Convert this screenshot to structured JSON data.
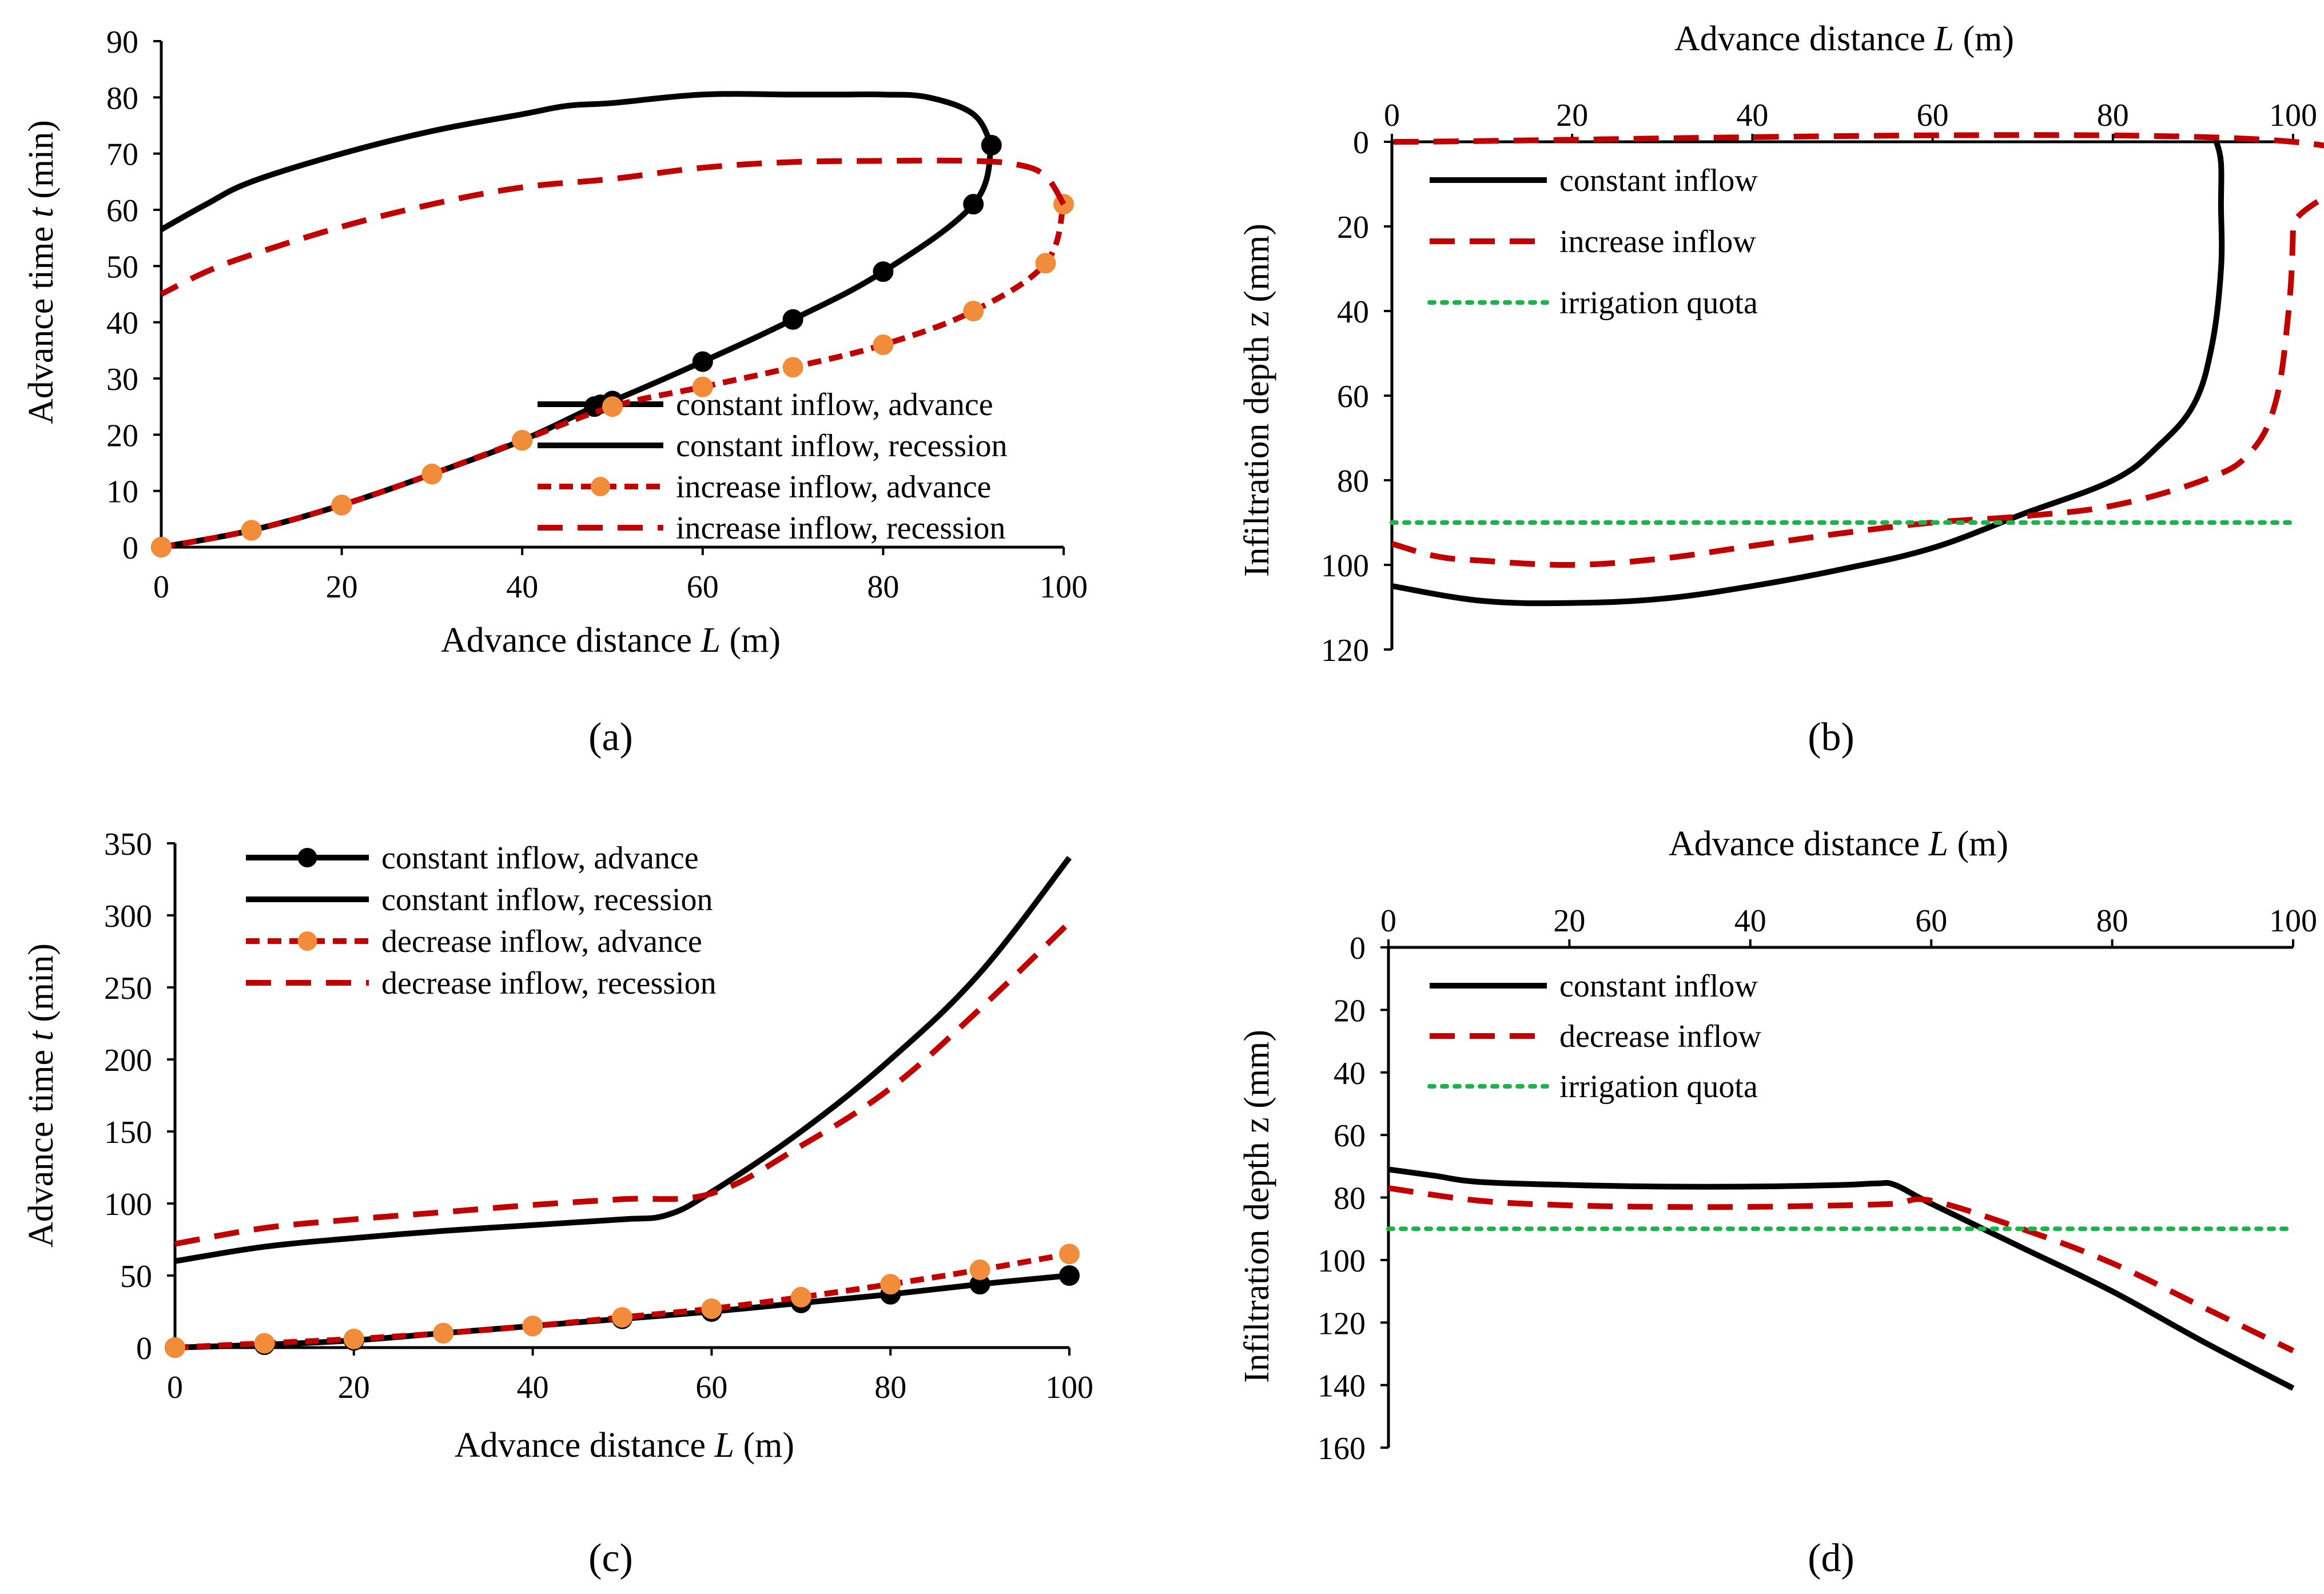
{
  "colors": {
    "constant": "#000000",
    "variable": "#c00000",
    "marker_variable": "#f08c3a",
    "quota": "#1db34a"
  },
  "chart_data": [
    {
      "id": "a",
      "type": "line",
      "panel_label": "(a)",
      "xlabel_pre": "Advance distance ",
      "xlabel_var": "L",
      "xlabel_post": " (m)",
      "ylabel_pre": "Advance time ",
      "ylabel_var": "t",
      "ylabel_post": " (min)",
      "xlim": [
        0,
        100
      ],
      "ylim": [
        0,
        90
      ],
      "xticks": [
        "0",
        "20",
        "40",
        "60",
        "80",
        "100"
      ],
      "yticks": [
        "0",
        "10",
        "20",
        "30",
        "40",
        "50",
        "60",
        "70",
        "80",
        "90"
      ],
      "legend_position": "bottom-right",
      "series": [
        {
          "name": "constant inflow,   advance",
          "style": "constant-advance",
          "x": [
            0,
            10,
            20,
            30,
            40,
            48,
            50,
            60,
            70,
            80,
            90,
            92
          ],
          "y": [
            0,
            3,
            7.5,
            13,
            19,
            25,
            26,
            33,
            40.5,
            49,
            61,
            71.5
          ]
        },
        {
          "name": "constant inflow,   recession",
          "style": "constant-recession",
          "x": [
            92,
            90,
            85,
            80,
            75,
            70,
            60,
            50,
            45,
            40,
            30,
            20,
            10,
            5,
            0
          ],
          "y": [
            71.5,
            77,
            80,
            80.5,
            80.5,
            80.5,
            80.5,
            79,
            78.5,
            77,
            74,
            70,
            65,
            61,
            56.5
          ]
        },
        {
          "name": "increase inflow,   advance",
          "style": "variable-advance",
          "x": [
            0,
            10,
            20,
            30,
            40,
            50,
            60,
            70,
            80,
            90,
            98,
            100
          ],
          "y": [
            0,
            3,
            7.5,
            13,
            19,
            25,
            28.5,
            32,
            36,
            42,
            50.5,
            61
          ]
        },
        {
          "name": "increase inflow,   recession",
          "style": "variable-recession",
          "x": [
            100,
            98,
            95,
            90,
            80,
            70,
            60,
            50,
            40,
            30,
            20,
            10,
            5,
            0
          ],
          "y": [
            61,
            66,
            68,
            68.7,
            68.7,
            68.5,
            67.5,
            65.5,
            64,
            61,
            57,
            52,
            49,
            45
          ]
        }
      ]
    },
    {
      "id": "b",
      "type": "line",
      "panel_label": "(b)",
      "xlabel_pre": "Advance distance ",
      "xlabel_var": "L",
      "xlabel_post": " (m)",
      "ylabel_pre": "Infiltration depth z (mm)",
      "ylabel_var": "",
      "ylabel_post": "",
      "xlim": [
        0,
        100
      ],
      "ylim": [
        0,
        120
      ],
      "y_inverted": true,
      "x_axis_top": true,
      "xticks": [
        "0",
        "20",
        "40",
        "60",
        "80",
        "100"
      ],
      "yticks": [
        "0",
        "20",
        "40",
        "60",
        "80",
        "100",
        "120"
      ],
      "legend_position": "top-left",
      "series": [
        {
          "name": "constant inflow",
          "style": "constant-recession",
          "x": [
            0,
            10,
            20,
            30,
            40,
            50,
            60,
            70,
            80,
            85,
            89,
            91,
            92,
            92,
            92,
            91.5
          ],
          "y": [
            105,
            108.5,
            109,
            108,
            105,
            101,
            96,
            88,
            80,
            72,
            62,
            48,
            30,
            15,
            5,
            0
          ]
        },
        {
          "name": "increase inflow",
          "style": "variable-recession",
          "x": [
            0,
            5,
            10,
            20,
            30,
            40,
            50,
            60,
            70,
            80,
            90,
            95,
            98,
            99.5,
            100,
            100,
            0
          ],
          "y": [
            95,
            98,
            99,
            100,
            98.5,
            95.5,
            92.5,
            90,
            88.5,
            86,
            80,
            74,
            62,
            40,
            20,
            0,
            0
          ]
        },
        {
          "name": "irrigation quota",
          "style": "quota",
          "x": [
            0,
            100
          ],
          "y": [
            90,
            90
          ]
        }
      ]
    },
    {
      "id": "c",
      "type": "line",
      "panel_label": "(c)",
      "xlabel_pre": "Advance distance ",
      "xlabel_var": "L",
      "xlabel_post": " (m)",
      "ylabel_pre": "Advance time ",
      "ylabel_var": "t",
      "ylabel_post": " (min)",
      "xlim": [
        0,
        100
      ],
      "ylim": [
        0,
        350
      ],
      "xticks": [
        "0",
        "20",
        "40",
        "60",
        "80",
        "100"
      ],
      "yticks": [
        "0",
        "50",
        "100",
        "150",
        "200",
        "250",
        "300",
        "350"
      ],
      "legend_position": "top-left",
      "series": [
        {
          "name": "constant inflow,   advance",
          "style": "constant-advance",
          "x": [
            0,
            10,
            20,
            30,
            40,
            50,
            60,
            70,
            80,
            90,
            100
          ],
          "y": [
            0,
            2,
            5,
            10,
            15,
            20,
            25,
            31,
            37,
            44,
            50
          ]
        },
        {
          "name": "constant inflow,   recession",
          "style": "constant-recession",
          "x": [
            0,
            10,
            20,
            30,
            40,
            50,
            55,
            60,
            70,
            80,
            90,
            100
          ],
          "y": [
            60,
            70,
            76,
            81,
            85,
            89,
            92,
            108,
            150,
            200,
            260,
            340
          ]
        },
        {
          "name": "decrease inflow,   advance",
          "style": "variable-advance",
          "x": [
            0,
            10,
            20,
            30,
            40,
            50,
            60,
            70,
            80,
            90,
            100
          ],
          "y": [
            0,
            3,
            6,
            10,
            15,
            21,
            27,
            35,
            44,
            54,
            65
          ]
        },
        {
          "name": "decrease inflow,   recession",
          "style": "variable-recession",
          "x": [
            0,
            10,
            20,
            30,
            40,
            50,
            60,
            70,
            80,
            90,
            100
          ],
          "y": [
            72,
            83,
            89,
            94,
            99,
            103,
            107,
            140,
            180,
            235,
            295
          ]
        }
      ]
    },
    {
      "id": "d",
      "type": "line",
      "panel_label": "(d)",
      "xlabel_pre": "Advance distance ",
      "xlabel_var": "L",
      "xlabel_post": " (m)",
      "ylabel_pre": "Infiltration depth z (mm)",
      "ylabel_var": "",
      "ylabel_post": "",
      "xlim": [
        0,
        100
      ],
      "ylim": [
        0,
        160
      ],
      "y_inverted": true,
      "x_axis_top": true,
      "xticks": [
        "0",
        "20",
        "40",
        "60",
        "80",
        "100"
      ],
      "yticks": [
        "0",
        "20",
        "40",
        "60",
        "80",
        "100",
        "120",
        "140",
        "160"
      ],
      "legend_position": "top-left",
      "series": [
        {
          "name": "constant inflow",
          "style": "constant-recession",
          "x": [
            0,
            5,
            10,
            20,
            30,
            40,
            50,
            54,
            56,
            60,
            70,
            80,
            90,
            100
          ],
          "y": [
            71,
            73,
            75,
            76,
            76.5,
            76.5,
            76,
            75.5,
            76,
            82,
            96,
            110,
            126,
            141
          ]
        },
        {
          "name": "decrease inflow",
          "style": "variable-recession",
          "x": [
            0,
            10,
            20,
            30,
            40,
            50,
            56,
            60,
            70,
            80,
            90,
            100
          ],
          "y": [
            77,
            81,
            82.5,
            83,
            83,
            82.5,
            82,
            81,
            90,
            101,
            115,
            129
          ]
        },
        {
          "name": "irrigation quota",
          "style": "quota",
          "x": [
            0,
            100
          ],
          "y": [
            90,
            90
          ]
        }
      ]
    }
  ]
}
